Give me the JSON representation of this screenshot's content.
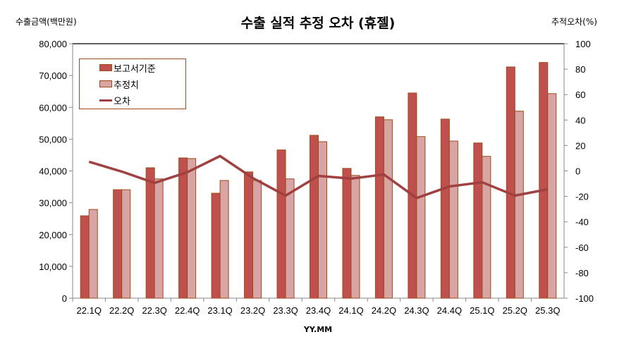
{
  "chart_data": {
    "type": "bar",
    "title": "수출 실적 추정 오차 (휴젤)",
    "ylabel": "수출금액(백만원)",
    "y2label": "추적오차(%)",
    "xlabel": "YY.MM",
    "categories": [
      "22.1Q",
      "22.2Q",
      "22.3Q",
      "22.4Q",
      "23.1Q",
      "23.2Q",
      "23.3Q",
      "23.4Q",
      "24.1Q",
      "24.2Q",
      "24.3Q",
      "24.4Q",
      "25.1Q",
      "25.2Q",
      "25.3Q"
    ],
    "ylim": [
      0,
      80000
    ],
    "y2lim": [
      -100,
      100
    ],
    "yticks": [
      "0",
      "10,000",
      "20,000",
      "30,000",
      "40,000",
      "50,000",
      "60,000",
      "70,000",
      "80,000"
    ],
    "y2ticks": [
      "-100",
      "-80",
      "-60",
      "-40",
      "-20",
      "0",
      "20",
      "40",
      "60",
      "80",
      "100"
    ],
    "legend_position": "top-left",
    "grid": false,
    "series": [
      {
        "name": "보고서기준",
        "type": "bar",
        "axis": "left",
        "color": "#c0504d",
        "values": [
          25900,
          34100,
          41000,
          44100,
          33000,
          39700,
          46600,
          51200,
          40800,
          57000,
          64500,
          56300,
          48800,
          72700,
          74100
        ]
      },
      {
        "name": "추정치",
        "type": "bar",
        "axis": "left",
        "color": "#d9a5a4",
        "values": [
          27900,
          34100,
          37500,
          43900,
          37000,
          37000,
          37500,
          49200,
          38600,
          56100,
          50800,
          49400,
          44600,
          58800,
          64300
        ]
      },
      {
        "name": "오차",
        "type": "line",
        "axis": "right",
        "color": "#a04040",
        "values": [
          7.2,
          -0.5,
          -9.4,
          -1,
          11.7,
          -5.6,
          -19.4,
          -3.9,
          -6,
          -2.8,
          -21.3,
          -12.2,
          -8.9,
          -19.4,
          -14.4
        ]
      }
    ]
  }
}
